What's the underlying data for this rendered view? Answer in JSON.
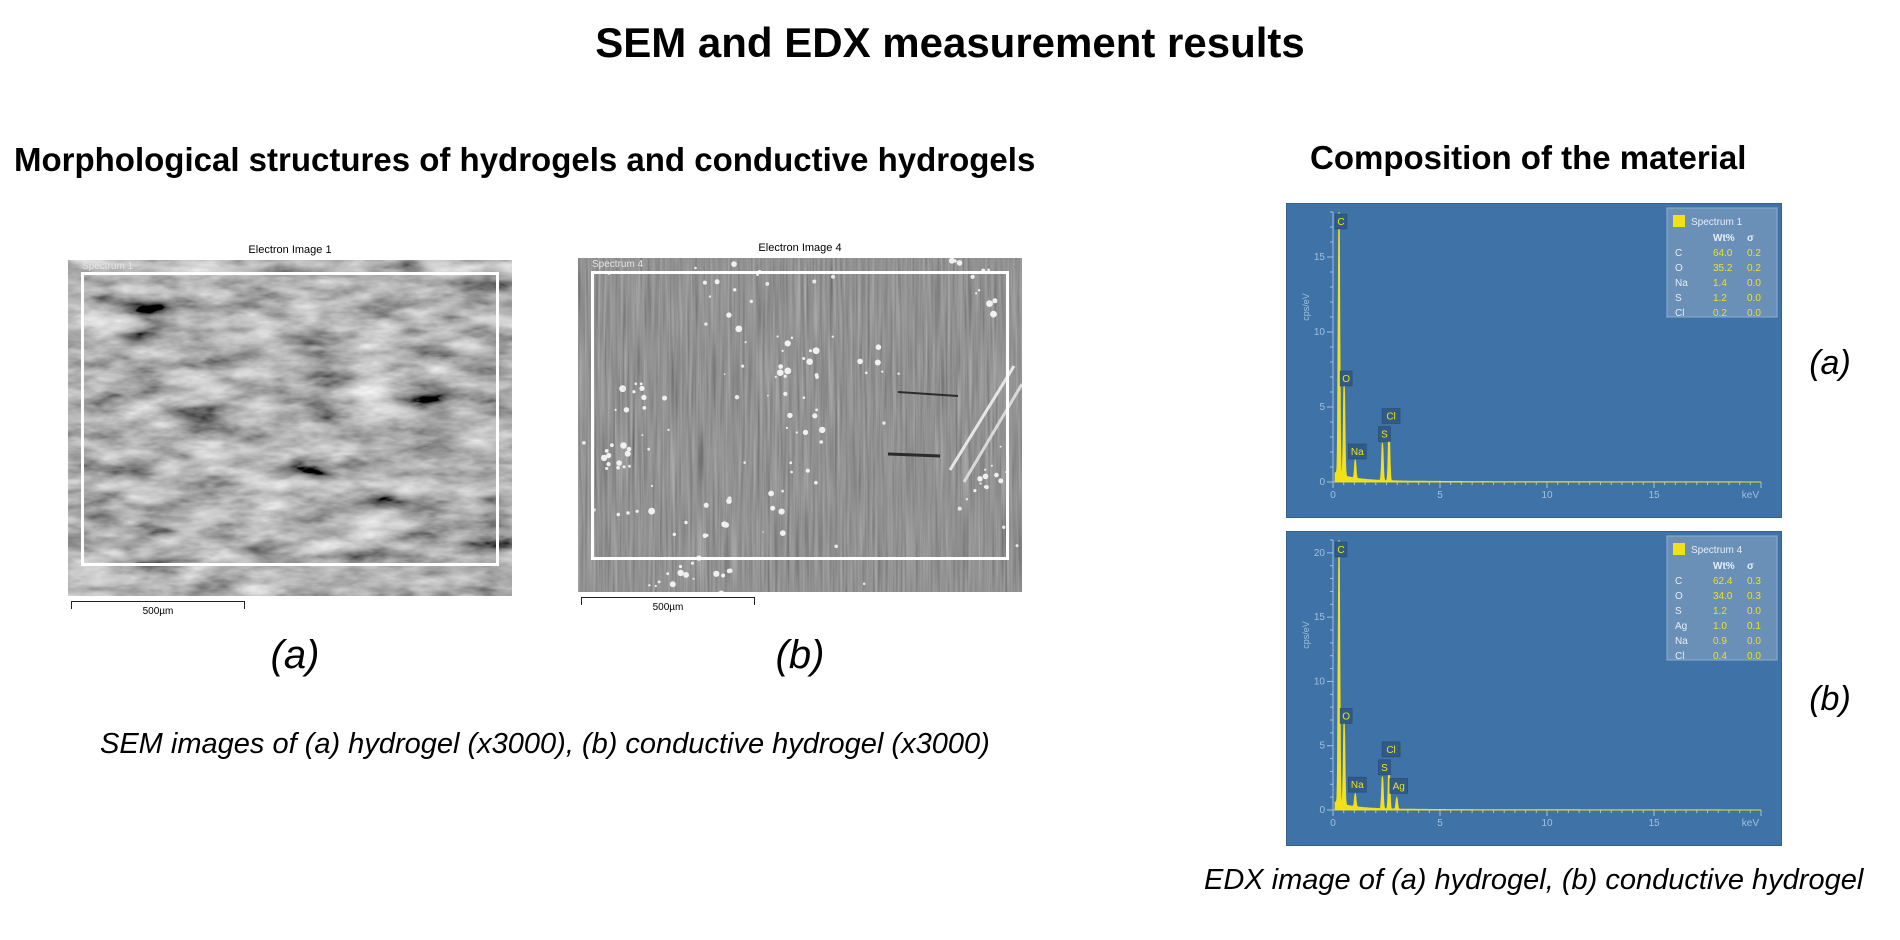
{
  "page_title": "SEM and EDX measurement results",
  "sem_section": {
    "title": "Morphological structures of hydrogels and conductive hydrogels",
    "caption": "SEM images of (a) hydrogel (x3000), (b) conductive hydrogel (x3000)",
    "panels": [
      {
        "image_title": "Electron Image 1",
        "spectrum_tag": "Spectrum 1",
        "scale_label": "500µm",
        "sub_label": "(a)"
      },
      {
        "image_title": "Electron Image 4",
        "spectrum_tag": "Spectrum 4",
        "scale_label": "500µm",
        "sub_label": "(b)"
      }
    ]
  },
  "edx_section": {
    "title": "Composition of the material",
    "caption": "EDX image of (a) hydrogel, (b) conductive hydrogel",
    "panel_labels": [
      "(a)",
      "(b)"
    ]
  },
  "chart_data": [
    {
      "type": "line",
      "xlabel": "keV",
      "ylabel": "cps/eV",
      "xlim": [
        0,
        20
      ],
      "ylim": [
        0,
        18
      ],
      "x_ticks": [
        0,
        5,
        10,
        15
      ],
      "y_ticks": [
        0,
        5,
        10,
        15
      ],
      "legend": {
        "name": "Spectrum 1",
        "placement": "top-right",
        "headers": [
          "Wt%",
          "σ"
        ],
        "rows": [
          {
            "el": "C",
            "wt": "64.0",
            "sigma": "0.2"
          },
          {
            "el": "O",
            "wt": "35.2",
            "sigma": "0.2"
          },
          {
            "el": "Na",
            "wt": "1.4",
            "sigma": "0.0"
          },
          {
            "el": "S",
            "wt": "1.2",
            "sigma": "0.0"
          },
          {
            "el": "Cl",
            "wt": "0.2",
            "sigma": "0.0"
          }
        ]
      },
      "peaks": [
        {
          "label": "C",
          "x": 0.28,
          "y": 17.8
        },
        {
          "label": "O",
          "x": 0.52,
          "y": 6.2
        },
        {
          "label": "Na",
          "x": 1.04,
          "y": 1.2
        },
        {
          "label": "S",
          "x": 2.31,
          "y": 2.5
        },
        {
          "label": "Cl",
          "x": 2.62,
          "y": 3.5
        }
      ],
      "colors": {
        "background": "#3f72a6",
        "trace": "#f2e01b",
        "axis": "#9fc0e0"
      }
    },
    {
      "type": "line",
      "xlabel": "keV",
      "ylabel": "cps/eV",
      "xlim": [
        0,
        20
      ],
      "ylim": [
        0,
        21
      ],
      "x_ticks": [
        0,
        5,
        10,
        15
      ],
      "y_ticks": [
        0,
        5,
        10,
        15,
        20
      ],
      "legend": {
        "name": "Spectrum 4",
        "placement": "top-right",
        "headers": [
          "Wt%",
          "σ"
        ],
        "rows": [
          {
            "el": "C",
            "wt": "62.4",
            "sigma": "0.3"
          },
          {
            "el": "O",
            "wt": "34.0",
            "sigma": "0.3"
          },
          {
            "el": "S",
            "wt": "1.2",
            "sigma": "0.0"
          },
          {
            "el": "Ag",
            "wt": "1.0",
            "sigma": "0.1"
          },
          {
            "el": "Na",
            "wt": "0.9",
            "sigma": "0.0"
          },
          {
            "el": "Cl",
            "wt": "0.4",
            "sigma": "0.0"
          }
        ]
      },
      "peaks": [
        {
          "label": "C",
          "x": 0.28,
          "y": 20.8
        },
        {
          "label": "O",
          "x": 0.52,
          "y": 6.5
        },
        {
          "label": "Na",
          "x": 1.04,
          "y": 1.0
        },
        {
          "label": "S",
          "x": 2.31,
          "y": 2.5
        },
        {
          "label": "Cl",
          "x": 2.62,
          "y": 3.5
        },
        {
          "label": "Ag",
          "x": 2.98,
          "y": 0.9
        }
      ],
      "colors": {
        "background": "#3f72a6",
        "trace": "#f2e01b",
        "axis": "#9fc0e0"
      }
    }
  ]
}
